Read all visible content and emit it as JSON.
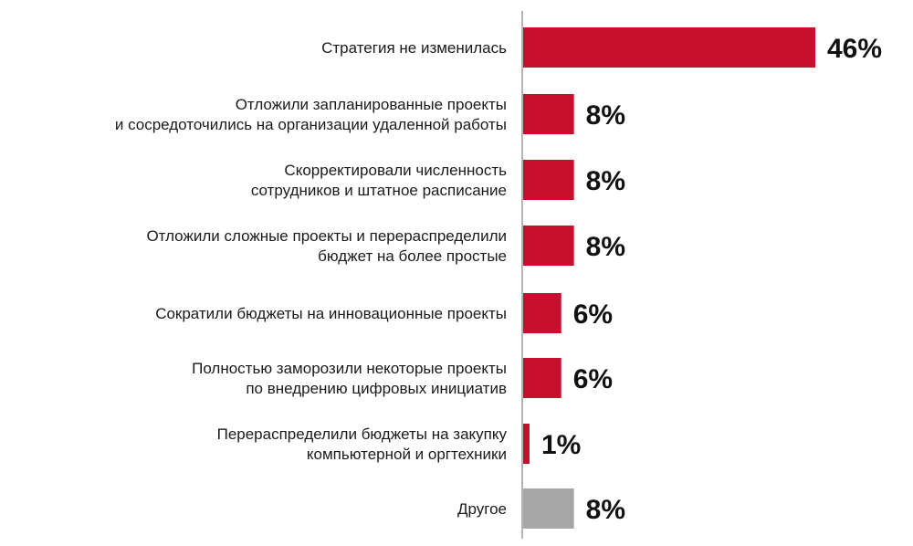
{
  "chart_data": {
    "type": "bar",
    "orientation": "horizontal",
    "title": "",
    "xlabel": "",
    "ylabel": "",
    "xlim": [
      0,
      46
    ],
    "grid": false,
    "legend": "none",
    "value_suffix": "%",
    "categories": [
      [
        "Стратегия  не изменилась"
      ],
      [
        "Отложили  запланированные  проекты",
        "и сосредоточились на организации  удаленной работы"
      ],
      [
        "Скорректировали  численность",
        "сотрудников  и штатное  расписание"
      ],
      [
        "Отложили  сложные проекты  и перераспределили",
        "бюджет на более  простые"
      ],
      [
        "Сократили  бюджеты на инновационные  проекты"
      ],
      [
        "Полностью  заморозили  некоторые  проекты",
        "по внедрению  цифровых  инициатив"
      ],
      [
        "Перераспределили  бюджеты на закупку",
        "компьютерной  и оргтехники"
      ],
      [
        "Другое"
      ]
    ],
    "value_labels": [
      "46%",
      "8%",
      "8%",
      "8%",
      "6%",
      "6%",
      "1%",
      "8%"
    ],
    "values": [
      46,
      8,
      8,
      8,
      6,
      6,
      1,
      8
    ],
    "bar_colors": [
      "#c8102e",
      "#c8102e",
      "#c8102e",
      "#c8102e",
      "#c8102e",
      "#c8102e",
      "#c8102e",
      "#a6a6a6"
    ],
    "axis_color": "#9a9a9a"
  }
}
